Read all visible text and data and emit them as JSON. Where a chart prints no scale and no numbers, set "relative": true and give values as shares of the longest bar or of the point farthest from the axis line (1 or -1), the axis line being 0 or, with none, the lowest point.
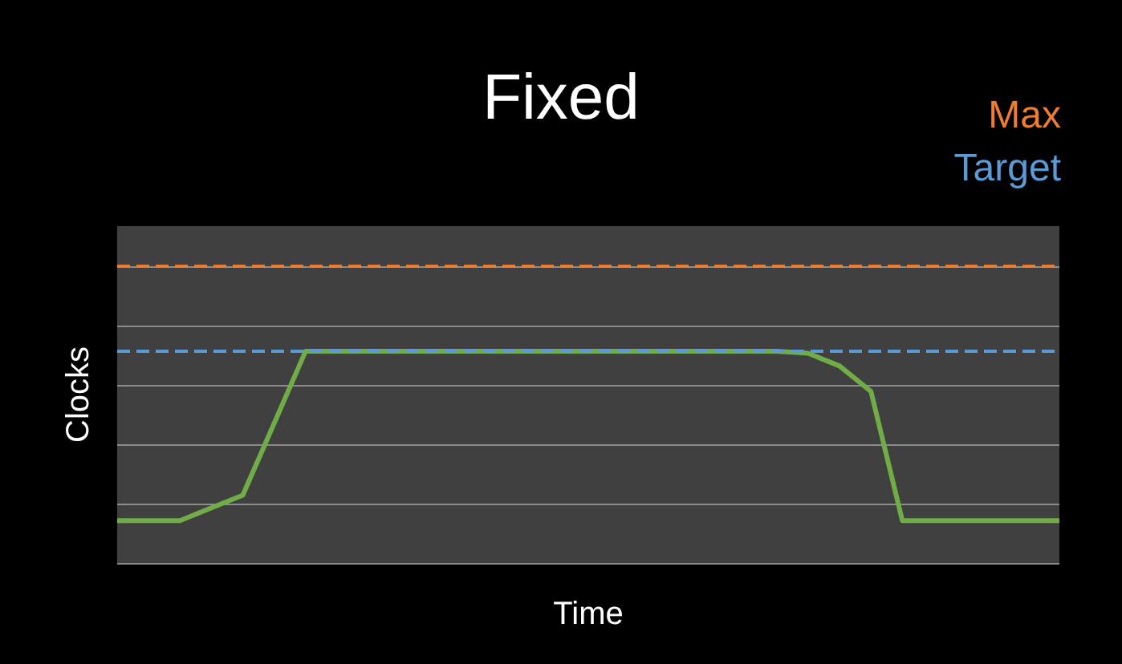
{
  "chart_data": {
    "type": "line",
    "title": "Fixed",
    "xlabel": "Time",
    "ylabel": "Clocks",
    "relative": true,
    "grid": "y",
    "marker": "none",
    "line_style": "solid",
    "categories": [
      null,
      null,
      null,
      null,
      null,
      null,
      null,
      null,
      null,
      null,
      null,
      null,
      null,
      null,
      null,
      null,
      null,
      null,
      null,
      null,
      null,
      null,
      null,
      null,
      null,
      null,
      null,
      null,
      null,
      null,
      null
    ],
    "series": [
      {
        "color": "#70ad47",
        "values": [
          0.2,
          0.2,
          0.2,
          0.26,
          0.32,
          0.66,
          1,
          1,
          1,
          1,
          1,
          1,
          1,
          1,
          1,
          1,
          1,
          1,
          1,
          1,
          1,
          1,
          0.99,
          0.93,
          0.81,
          0.2,
          0.2,
          0.2,
          0.2,
          0.2,
          0.2
        ]
      }
    ],
    "ref_lines": [
      {
        "axis": "y",
        "value": 1.4,
        "label": "Max",
        "color": "#ed7d31",
        "line_style": "dashed"
      },
      {
        "axis": "y",
        "value": 1,
        "label": "Target",
        "color": "#5b9bd5",
        "line_style": "dashed"
      }
    ]
  }
}
